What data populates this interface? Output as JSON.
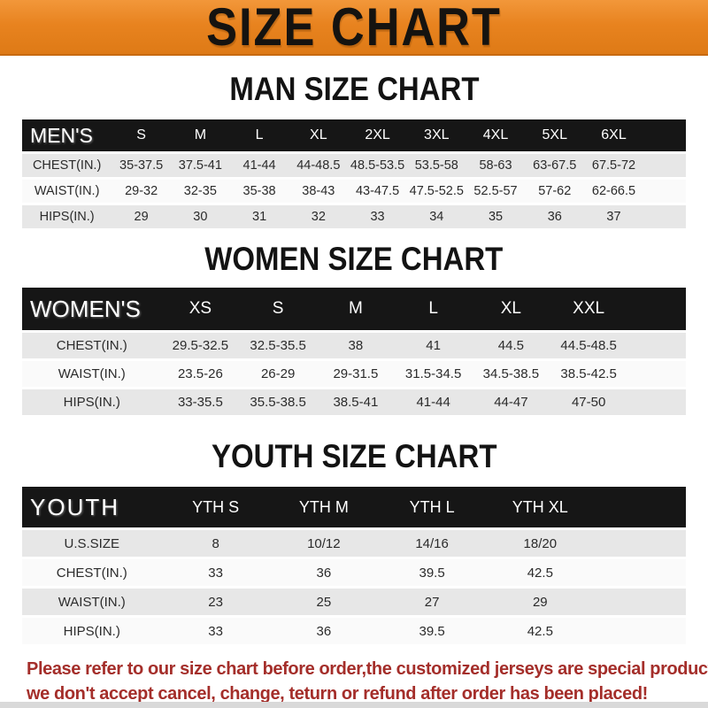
{
  "banner": {
    "title": "SIZE CHART"
  },
  "sections": [
    {
      "title": "MAN SIZE CHART",
      "header_label": "MEN'S",
      "columns": [
        "S",
        "M",
        "L",
        "XL",
        "2XL",
        "3XL",
        "4XL",
        "5XL",
        "6XL"
      ],
      "rows": [
        {
          "label": "CHEST(IN.)",
          "values": [
            "35-37.5",
            "37.5-41",
            "41-44",
            "44-48.5",
            "48.5-53.5",
            "53.5-58",
            "58-63",
            "63-67.5",
            "67.5-72"
          ]
        },
        {
          "label": "WAIST(IN.)",
          "values": [
            "29-32",
            "32-35",
            "35-38",
            "38-43",
            "43-47.5",
            "47.5-52.5",
            "52.5-57",
            "57-62",
            "62-66.5"
          ]
        },
        {
          "label": "HIPS(IN.)",
          "values": [
            "29",
            "30",
            "31",
            "32",
            "33",
            "34",
            "35",
            "36",
            "37"
          ]
        }
      ]
    },
    {
      "title": "WOMEN SIZE CHART",
      "header_label": "WOMEN'S",
      "columns": [
        "XS",
        "S",
        "M",
        "L",
        "XL",
        "XXL"
      ],
      "rows": [
        {
          "label": "CHEST(IN.)",
          "values": [
            "29.5-32.5",
            "32.5-35.5",
            "38",
            "41",
            "44.5",
            "44.5-48.5"
          ]
        },
        {
          "label": "WAIST(IN.)",
          "values": [
            "23.5-26",
            "26-29",
            "29-31.5",
            "31.5-34.5",
            "34.5-38.5",
            "38.5-42.5"
          ]
        },
        {
          "label": "HIPS(IN.)",
          "values": [
            "33-35.5",
            "35.5-38.5",
            "38.5-41",
            "41-44",
            "44-47",
            "47-50"
          ]
        }
      ]
    },
    {
      "title": "YOUTH SIZE CHART",
      "header_label": "YOUTH",
      "columns": [
        "YTH S",
        "YTH M",
        "YTH L",
        "YTH XL"
      ],
      "rows": [
        {
          "label": "U.S.SIZE",
          "values": [
            "8",
            "10/12",
            "14/16",
            "18/20"
          ]
        },
        {
          "label": "CHEST(IN.)",
          "values": [
            "33",
            "36",
            "39.5",
            "42.5"
          ]
        },
        {
          "label": "WAIST(IN.)",
          "values": [
            "23",
            "25",
            "27",
            "29"
          ]
        },
        {
          "label": "HIPS(IN.)",
          "values": [
            "33",
            "36",
            "39.5",
            "42.5"
          ]
        }
      ]
    }
  ],
  "footer": {
    "line1": "Please refer to our size chart before order,the customized jerseys are special products,",
    "line2": "we don't accept cancel, change, teturn or refund after order has been placed!"
  },
  "colors": {
    "banner_orange": "#e8831f",
    "band_black": "#161616",
    "row_gray": "#e7e7e7",
    "row_light": "#fafafa",
    "disclaimer_red": "#a42e2a",
    "title_black": "#131313"
  }
}
